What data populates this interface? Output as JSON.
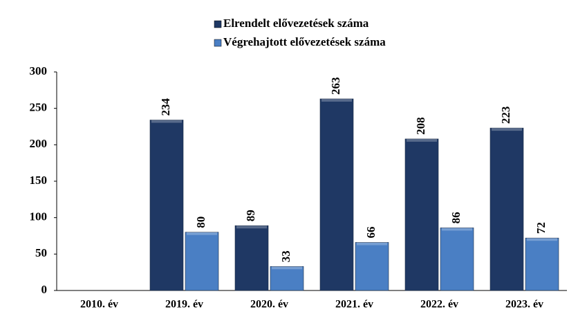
{
  "chart_data": {
    "type": "bar",
    "categories": [
      "2010. év",
      "2019. év",
      "2020. év",
      "2021. év",
      "2022. év",
      "2023. év"
    ],
    "series": [
      {
        "name": "Elrendelt elővezetések száma",
        "color": "#1f3864",
        "values": [
          null,
          234,
          89,
          263,
          208,
          223
        ]
      },
      {
        "name": "Végrehajtott elővezetések száma",
        "color": "#4a7fc4",
        "values": [
          null,
          80,
          33,
          66,
          86,
          72
        ]
      }
    ],
    "ylim": [
      0,
      300
    ],
    "yticks": [
      0,
      50,
      100,
      150,
      200,
      250,
      300
    ],
    "grid": false,
    "legend": "top"
  }
}
